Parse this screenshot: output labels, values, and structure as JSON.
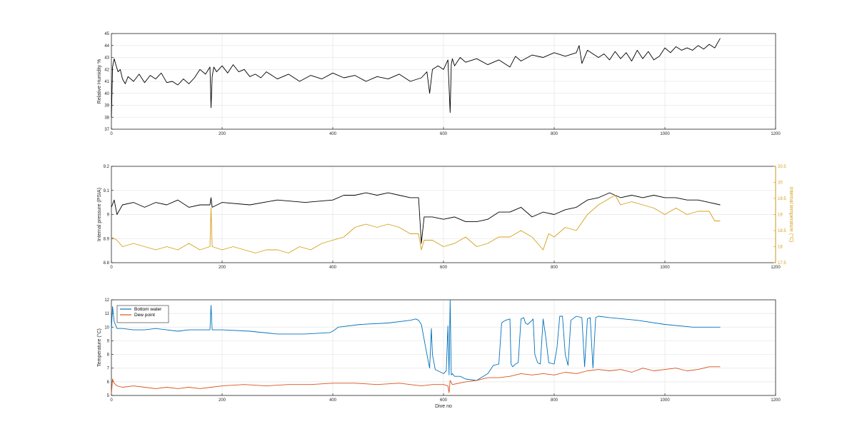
{
  "chart_data": [
    {
      "type": "line",
      "xlabel": "",
      "ylabel": "Relative Humidity %",
      "xlim": [
        0,
        1200
      ],
      "ylim": [
        37,
        45
      ],
      "xticks": [
        "0",
        "200",
        "400",
        "600",
        "800",
        "1000",
        "1200"
      ],
      "yticks": [
        "37",
        "38",
        "39",
        "40",
        "41",
        "42",
        "43",
        "44",
        "45"
      ],
      "grid": true,
      "series": [
        {
          "color": "#000000",
          "x": [
            0,
            2,
            5,
            8,
            12,
            16,
            20,
            25,
            30,
            40,
            50,
            60,
            70,
            80,
            90,
            100,
            110,
            120,
            130,
            140,
            150,
            160,
            170,
            178,
            180,
            182,
            185,
            190,
            200,
            210,
            220,
            230,
            240,
            250,
            260,
            270,
            280,
            300,
            320,
            340,
            360,
            380,
            400,
            420,
            440,
            460,
            480,
            500,
            520,
            540,
            560,
            570,
            575,
            580,
            590,
            600,
            608,
            612,
            614,
            616,
            620,
            630,
            640,
            660,
            680,
            700,
            720,
            730,
            740,
            760,
            780,
            800,
            820,
            840,
            845,
            850,
            860,
            870,
            880,
            890,
            900,
            910,
            920,
            930,
            940,
            950,
            960,
            970,
            980,
            990,
            1000,
            1010,
            1020,
            1030,
            1040,
            1050,
            1060,
            1070,
            1080,
            1090,
            1100
          ],
          "y": [
            38,
            42.2,
            42.9,
            42.4,
            41.8,
            42.0,
            41.2,
            40.8,
            41.4,
            41.0,
            41.6,
            40.9,
            41.5,
            41.2,
            41.7,
            40.9,
            41.0,
            40.7,
            41.2,
            40.8,
            41.3,
            42.0,
            41.6,
            42.2,
            38.8,
            41.4,
            42.2,
            41.8,
            42.3,
            41.7,
            42.4,
            41.8,
            42.0,
            41.4,
            41.6,
            41.3,
            41.8,
            41.2,
            41.6,
            41.0,
            41.5,
            41.2,
            41.7,
            41.3,
            41.5,
            41.0,
            41.4,
            41.2,
            41.6,
            41.0,
            41.3,
            41.8,
            40.0,
            42.0,
            42.3,
            42.0,
            42.8,
            38.4,
            42.4,
            42.9,
            42.3,
            43.0,
            42.6,
            42.9,
            42.4,
            42.8,
            42.2,
            43.1,
            42.7,
            43.2,
            43.0,
            43.4,
            43.1,
            43.4,
            44.0,
            42.5,
            43.6,
            43.3,
            43.0,
            43.3,
            42.8,
            43.5,
            42.9,
            43.4,
            42.7,
            43.6,
            42.9,
            43.5,
            42.8,
            43.1,
            43.8,
            43.4,
            43.9,
            43.6,
            43.8,
            43.6,
            44.0,
            43.7,
            44.1,
            43.8,
            44.6
          ]
        }
      ]
    },
    {
      "type": "line",
      "xlabel": "",
      "ylabel": "Internal pressure (PSIA)",
      "ylabel_right": "Internal temperature (°C)",
      "xlim": [
        0,
        1200
      ],
      "ylim": [
        8.8,
        9.2
      ],
      "ylim_right": [
        17.5,
        20.5
      ],
      "xticks": [
        "0",
        "200",
        "400",
        "600",
        "800",
        "1000",
        "1200"
      ],
      "yticks": [
        "8.8",
        "8.9",
        "9",
        "9.1",
        "9.2"
      ],
      "yticks_right": [
        "17.5",
        "18",
        "18.5",
        "19",
        "19.5",
        "20",
        "20.5"
      ],
      "grid": true,
      "series": [
        {
          "color": "#000000",
          "axis": "left",
          "x": [
            0,
            5,
            10,
            20,
            40,
            60,
            80,
            100,
            120,
            140,
            160,
            178,
            180,
            182,
            200,
            250,
            300,
            350,
            400,
            420,
            440,
            460,
            480,
            500,
            520,
            540,
            555,
            560,
            565,
            580,
            600,
            620,
            640,
            660,
            680,
            700,
            720,
            740,
            760,
            780,
            800,
            820,
            840,
            860,
            880,
            900,
            920,
            940,
            960,
            980,
            1000,
            1020,
            1040,
            1060,
            1080,
            1100
          ],
          "y": [
            9.03,
            9.06,
            9.0,
            9.04,
            9.05,
            9.03,
            9.05,
            9.04,
            9.06,
            9.03,
            9.04,
            9.04,
            9.07,
            9.03,
            9.05,
            9.04,
            9.06,
            9.05,
            9.06,
            9.08,
            9.08,
            9.09,
            9.08,
            9.09,
            9.08,
            9.07,
            9.07,
            8.88,
            8.99,
            8.99,
            8.98,
            8.99,
            8.97,
            8.97,
            8.98,
            9.01,
            9.01,
            9.03,
            8.99,
            9.01,
            9.0,
            9.02,
            9.03,
            9.06,
            9.07,
            9.09,
            9.07,
            9.08,
            9.07,
            9.08,
            9.07,
            9.07,
            9.06,
            9.06,
            9.05,
            9.04
          ]
        },
        {
          "color": "#D4A017",
          "axis": "right",
          "x": [
            0,
            10,
            20,
            40,
            60,
            80,
            100,
            120,
            140,
            160,
            178,
            180,
            182,
            200,
            220,
            240,
            260,
            280,
            300,
            320,
            340,
            360,
            380,
            400,
            420,
            440,
            460,
            480,
            500,
            520,
            540,
            555,
            560,
            565,
            580,
            600,
            620,
            640,
            660,
            680,
            700,
            720,
            740,
            760,
            780,
            790,
            800,
            820,
            840,
            860,
            880,
            900,
            910,
            920,
            940,
            960,
            980,
            1000,
            1020,
            1040,
            1060,
            1080,
            1090,
            1100
          ],
          "y": [
            18.3,
            18.2,
            18.0,
            18.1,
            18.0,
            17.9,
            18.0,
            17.9,
            18.1,
            17.9,
            18.0,
            19.2,
            18.0,
            17.9,
            18.0,
            17.9,
            17.8,
            17.9,
            17.9,
            17.8,
            18.0,
            17.9,
            18.1,
            18.2,
            18.3,
            18.6,
            18.7,
            18.6,
            18.7,
            18.6,
            18.4,
            18.4,
            17.9,
            18.2,
            18.2,
            18.0,
            18.1,
            18.3,
            18.0,
            18.1,
            18.3,
            18.3,
            18.5,
            18.3,
            17.9,
            18.4,
            18.3,
            18.6,
            18.5,
            19.0,
            19.3,
            19.5,
            19.6,
            19.3,
            19.4,
            19.3,
            19.2,
            19.0,
            19.2,
            19.0,
            19.1,
            19.1,
            18.8,
            18.8
          ]
        }
      ]
    },
    {
      "type": "line",
      "xlabel": "Dive no",
      "ylabel": "Temperature (°C)",
      "xlim": [
        0,
        1200
      ],
      "ylim": [
        5,
        12
      ],
      "xticks": [
        "0",
        "200",
        "400",
        "600",
        "800",
        "1000",
        "1200"
      ],
      "yticks": [
        "5",
        "6",
        "7",
        "8",
        "9",
        "10",
        "11",
        "12"
      ],
      "grid": true,
      "legend_position": "top-left",
      "series": [
        {
          "name": "Bottom water",
          "color": "#0072BD",
          "x": [
            0,
            2,
            5,
            10,
            20,
            40,
            60,
            80,
            100,
            120,
            140,
            160,
            178,
            180,
            182,
            200,
            250,
            300,
            350,
            395,
            400,
            410,
            450,
            500,
            540,
            550,
            555,
            560,
            570,
            575,
            578,
            580,
            585,
            600,
            605,
            608,
            610,
            612,
            614,
            616,
            620,
            630,
            640,
            660,
            680,
            690,
            700,
            705,
            708,
            712,
            720,
            722,
            725,
            730,
            735,
            740,
            745,
            748,
            752,
            760,
            762,
            765,
            770,
            775,
            780,
            785,
            790,
            800,
            805,
            810,
            815,
            820,
            825,
            830,
            840,
            850,
            855,
            860,
            865,
            870,
            875,
            880,
            900,
            950,
            1000,
            1050,
            1100
          ],
          "y": [
            9.8,
            11.5,
            10.4,
            9.9,
            9.9,
            9.8,
            9.8,
            9.9,
            9.8,
            9.7,
            9.8,
            9.8,
            9.8,
            11.6,
            9.8,
            9.8,
            9.7,
            9.5,
            9.5,
            9.6,
            9.7,
            10.0,
            10.2,
            10.3,
            10.5,
            10.6,
            10.5,
            10.2,
            8.0,
            7.0,
            9.9,
            8.0,
            6.9,
            6.6,
            6.8,
            10.1,
            6.5,
            12.0,
            6.5,
            6.6,
            6.4,
            6.4,
            6.2,
            6.1,
            6.6,
            7.2,
            7.3,
            10.3,
            10.4,
            10.5,
            10.6,
            7.3,
            7.1,
            7.3,
            7.4,
            10.6,
            10.7,
            10.3,
            10.2,
            10.5,
            10.6,
            8.0,
            7.4,
            7.3,
            10.6,
            9.2,
            7.4,
            7.3,
            8.5,
            10.8,
            10.8,
            8.0,
            7.2,
            10.5,
            10.8,
            10.7,
            7.1,
            10.6,
            10.7,
            7.0,
            10.7,
            10.8,
            10.7,
            10.5,
            10.2,
            10.0,
            10.0
          ]
        },
        {
          "name": "Dew point",
          "color": "#D95319",
          "x": [
            0,
            2,
            5,
            10,
            20,
            40,
            60,
            80,
            100,
            120,
            140,
            160,
            180,
            200,
            240,
            280,
            320,
            360,
            400,
            440,
            480,
            520,
            560,
            580,
            600,
            608,
            610,
            612,
            616,
            640,
            660,
            680,
            700,
            720,
            740,
            760,
            780,
            800,
            820,
            840,
            860,
            880,
            900,
            920,
            940,
            960,
            980,
            1000,
            1020,
            1040,
            1060,
            1080,
            1100
          ],
          "y": [
            5.1,
            6.2,
            5.9,
            5.7,
            5.6,
            5.7,
            5.6,
            5.5,
            5.6,
            5.5,
            5.6,
            5.5,
            5.6,
            5.7,
            5.8,
            5.7,
            5.8,
            5.8,
            5.9,
            5.9,
            5.8,
            5.9,
            5.7,
            5.8,
            5.8,
            5.7,
            5.2,
            6.1,
            5.8,
            6.0,
            6.1,
            6.3,
            6.3,
            6.4,
            6.6,
            6.5,
            6.6,
            6.5,
            6.7,
            6.6,
            6.8,
            6.9,
            6.8,
            6.9,
            6.7,
            7.0,
            6.8,
            6.9,
            7.0,
            6.8,
            6.9,
            7.1,
            7.1
          ]
        }
      ]
    }
  ]
}
